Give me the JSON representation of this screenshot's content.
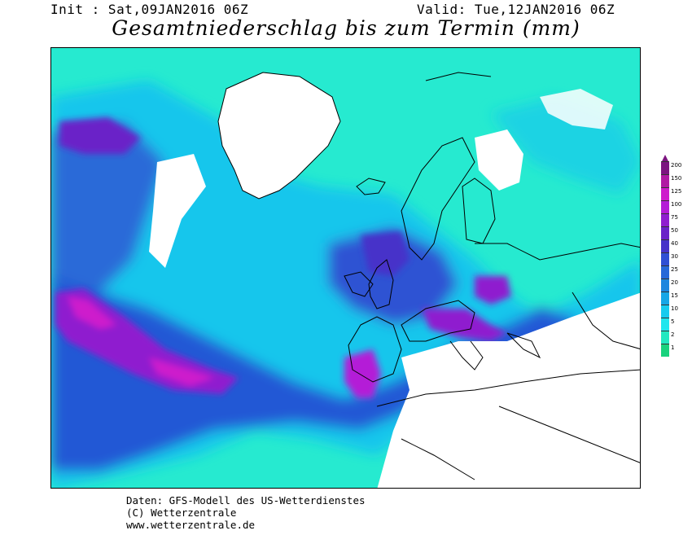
{
  "header": {
    "init": "Init : Sat,09JAN2016 06Z",
    "valid": "Valid: Tue,12JAN2016 06Z",
    "title": "Gesamtniederschlag bis zum Termin (mm)"
  },
  "legend": {
    "levels": [
      "1",
      "2",
      "5",
      "10",
      "15",
      "20",
      "25",
      "30",
      "40",
      "50",
      "75",
      "100",
      "125",
      "150",
      "200"
    ],
    "colors": [
      "#19d27d",
      "#22e8c0",
      "#1fe6ee",
      "#18cbef",
      "#17a6e6",
      "#1d86de",
      "#2668d8",
      "#2f4fd4",
      "#4633c9",
      "#6a22c8",
      "#8f1ecf",
      "#b41bd7",
      "#ce1bcc",
      "#b01aa3",
      "#7c1580"
    ]
  },
  "footer": {
    "line1": "Daten: GFS-Modell des US-Wetterdienstes",
    "line2": "(C) Wetterzentrale",
    "line3": "www.wetterzentrale.de"
  },
  "colors": {
    "land_outline": "#000000",
    "no_precip": "#ffffff",
    "ocean_field": "#1fe0d9"
  }
}
